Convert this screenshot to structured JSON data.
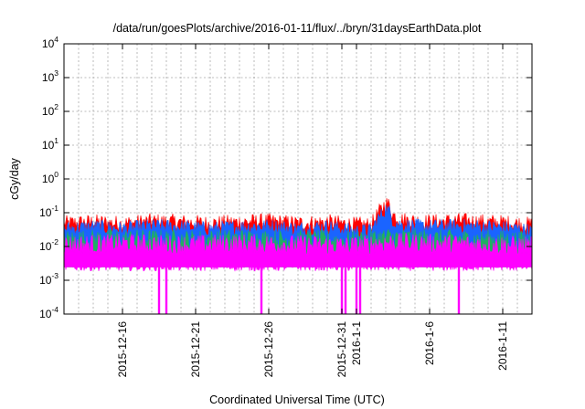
{
  "chart_data": {
    "type": "area",
    "title": "/data/run/goesPlots/archive/2016-01-11/flux/../bryn/31daysEarthData.plot",
    "xlabel": "Coordinated Universal Time (UTC)",
    "ylabel": "cGy/day",
    "yscale": "log",
    "ylim": [
      0.0001,
      10000
    ],
    "xlim": [
      "2015-12-12",
      "2016-01-13"
    ],
    "grid": true,
    "y_ticks": [
      {
        "value": 0.0001,
        "base": "10",
        "exp": "-4"
      },
      {
        "value": 0.001,
        "base": "10",
        "exp": "-3"
      },
      {
        "value": 0.01,
        "base": "10",
        "exp": "-2"
      },
      {
        "value": 0.1,
        "base": "10",
        "exp": "-1"
      },
      {
        "value": 1,
        "base": "10",
        "exp": "0"
      },
      {
        "value": 10,
        "base": "10",
        "exp": "1"
      },
      {
        "value": 100,
        "base": "10",
        "exp": "2"
      },
      {
        "value": 1000,
        "base": "10",
        "exp": "3"
      },
      {
        "value": 10000,
        "base": "10",
        "exp": "4"
      }
    ],
    "x_ticks": [
      "2015-12-16",
      "2015-12-21",
      "2015-12-26",
      "2015-12-31",
      "2016-1-1",
      "2016-1-6",
      "2016-1-11"
    ],
    "x_tick_dates": [
      "2015-12-16",
      "2015-12-21",
      "2015-12-26",
      "2015-12-31",
      "2016-01-01",
      "2016-01-06",
      "2016-01-11"
    ],
    "x_minor_grid_dates": [
      "2015-12-13",
      "2015-12-14",
      "2015-12-15",
      "2015-12-17",
      "2015-12-18",
      "2015-12-19",
      "2015-12-20",
      "2015-12-22",
      "2015-12-23",
      "2015-12-24",
      "2015-12-25",
      "2015-12-27",
      "2015-12-28",
      "2015-12-29",
      "2015-12-30",
      "2016-01-02",
      "2016-01-03",
      "2016-01-04",
      "2016-01-05",
      "2016-01-07",
      "2016-01-08",
      "2016-01-09",
      "2016-01-10",
      "2016-01-12"
    ],
    "series": [
      {
        "color": "#ff0000",
        "x": [
          "2015-12-12",
          "2015-12-14",
          "2015-12-16",
          "2015-12-18",
          "2015-12-20",
          "2015-12-22",
          "2015-12-24",
          "2015-12-26",
          "2015-12-28",
          "2015-12-30",
          "2016-01-01",
          "2016-01-02",
          "2016-01-02T12:00",
          "2016-01-03",
          "2016-01-03T06:00",
          "2016-01-03T12:00",
          "2016-01-04",
          "2016-01-06",
          "2016-01-08",
          "2016-01-10",
          "2016-01-12",
          "2016-01-13"
        ],
        "values": [
          0.05,
          0.055,
          0.05,
          0.058,
          0.055,
          0.05,
          0.055,
          0.058,
          0.05,
          0.055,
          0.045,
          0.045,
          0.1,
          0.2,
          0.17,
          0.09,
          0.065,
          0.055,
          0.06,
          0.055,
          0.05,
          0.045
        ]
      },
      {
        "color": "#1a64ff",
        "x": [
          "2015-12-12",
          "2015-12-14",
          "2015-12-16",
          "2015-12-18",
          "2015-12-20",
          "2015-12-22",
          "2015-12-24",
          "2015-12-26",
          "2015-12-28",
          "2015-12-30",
          "2016-01-01",
          "2016-01-02",
          "2016-01-02T12:00",
          "2016-01-03",
          "2016-01-03T06:00",
          "2016-01-03T12:00",
          "2016-01-04",
          "2016-01-06",
          "2016-01-08",
          "2016-01-10",
          "2016-01-12",
          "2016-01-13"
        ],
        "values": [
          0.035,
          0.04,
          0.035,
          0.042,
          0.04,
          0.035,
          0.04,
          0.042,
          0.035,
          0.04,
          0.03,
          0.03,
          0.07,
          0.13,
          0.11,
          0.06,
          0.045,
          0.04,
          0.042,
          0.04,
          0.035,
          0.03
        ]
      },
      {
        "color": "#20b060",
        "x": [
          "2015-12-12",
          "2015-12-16",
          "2015-12-20",
          "2015-12-24",
          "2015-12-28",
          "2016-01-01",
          "2016-01-03",
          "2016-01-06",
          "2016-01-10",
          "2016-01-13"
        ],
        "values": [
          0.017,
          0.018,
          0.017,
          0.018,
          0.017,
          0.016,
          0.02,
          0.018,
          0.017,
          0.016
        ]
      },
      {
        "color": "#ff00ff",
        "x": [
          "2015-12-12",
          "2015-12-16",
          "2015-12-20",
          "2015-12-24",
          "2015-12-28",
          "2016-01-01",
          "2016-01-03",
          "2016-01-06",
          "2016-01-10",
          "2016-01-13"
        ],
        "values": [
          0.012,
          0.013,
          0.012,
          0.013,
          0.012,
          0.011,
          0.014,
          0.013,
          0.012,
          0.011
        ],
        "floor": 0.0025,
        "dropouts": [
          "2015-12-18T12:00",
          "2015-12-19T00:00",
          "2015-12-25T12:00",
          "2015-12-31T00:00",
          "2015-12-31T06:00",
          "2016-01-01T00:00",
          "2016-01-01T06:00",
          "2016-01-08T00:00"
        ]
      }
    ]
  }
}
